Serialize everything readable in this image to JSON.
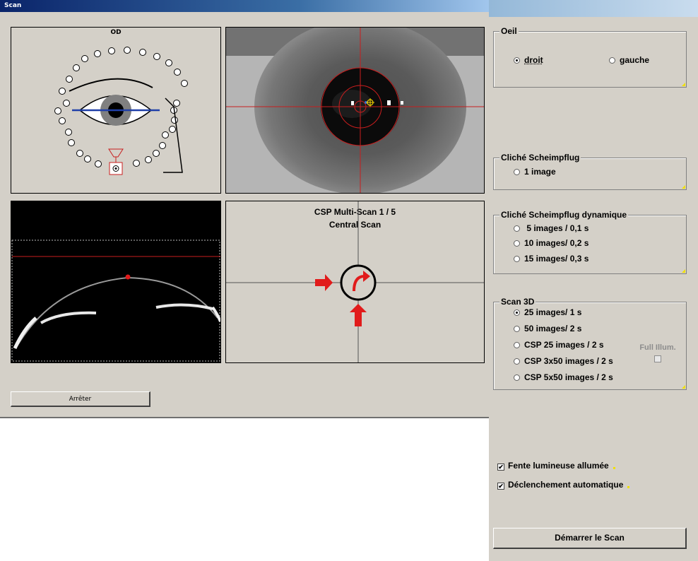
{
  "window": {
    "title": "Scan"
  },
  "diagram": {
    "eye_label": "OD"
  },
  "csp": {
    "title": "CSP Multi-Scan 1 / 5",
    "subtitle": "Central Scan"
  },
  "buttons": {
    "stop": "Arrêter",
    "start": "Démarrer le Scan"
  },
  "groups": {
    "oeil": {
      "legend": "Oeil",
      "options": [
        "droit",
        "gauche"
      ],
      "selected": "droit"
    },
    "scheimpflug": {
      "legend": "Cliché Scheimpflug",
      "options": [
        "1 image"
      ]
    },
    "scheimpflug_dyn": {
      "legend": "Cliché Scheimpflug dynamique",
      "options": [
        "5 images / 0,1 s",
        "10 images/ 0,2 s",
        "15 images/ 0,3 s"
      ]
    },
    "scan3d": {
      "legend": "Scan 3D",
      "options": [
        "25 images/ 1 s",
        "50 images/ 2 s",
        "CSP 25 images / 2 s",
        "CSP 3x50 images / 2 s",
        "CSP 5x50 images / 2 s"
      ],
      "selected": "25 images/ 1 s",
      "full_illum_label": "Full Illum.",
      "full_illum_checked": false
    }
  },
  "checkboxes": [
    {
      "label": "Fente lumineuse allumée",
      "checked": true
    },
    {
      "label": "Déclenchement automatique",
      "checked": true
    }
  ],
  "colors": {
    "crosshair": "#c81e1e",
    "arrow": "#e11b1b",
    "eye_line": "#1f3fa8",
    "accent_corner": "#f0e000"
  }
}
